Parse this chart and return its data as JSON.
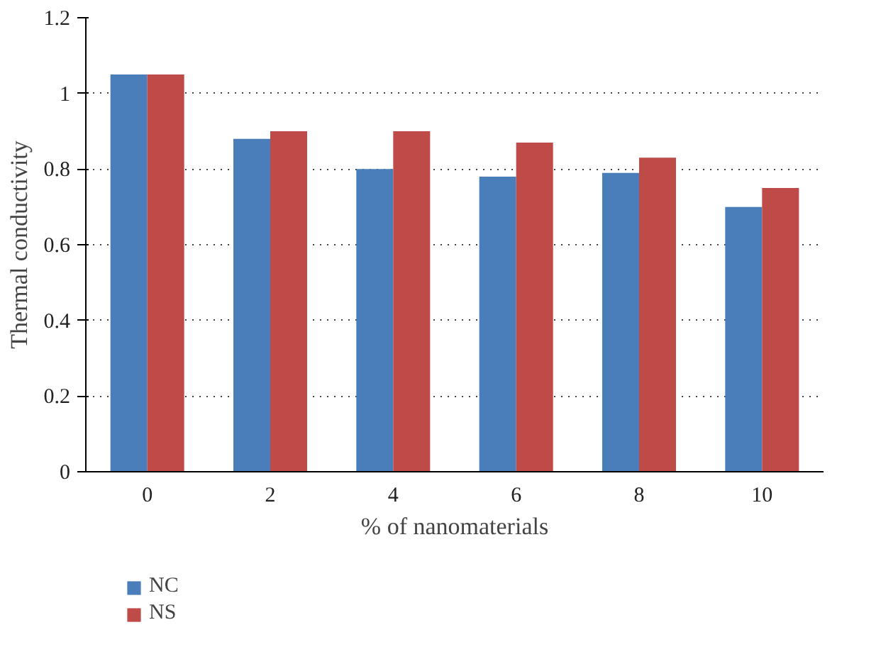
{
  "chart_data": {
    "type": "bar",
    "xlabel": "% of nanomaterials",
    "ylabel": "Thermal conductivity",
    "categories": [
      "0",
      "2",
      "4",
      "6",
      "8",
      "10"
    ],
    "series": [
      {
        "name": "NC",
        "color": "#4a7ebb",
        "values": [
          1.05,
          0.88,
          0.8,
          0.78,
          0.79,
          0.7
        ]
      },
      {
        "name": "NS",
        "color": "#be4b48",
        "values": [
          1.05,
          0.9,
          0.9,
          0.87,
          0.83,
          0.75
        ]
      }
    ],
    "ylim": [
      0,
      1.2
    ],
    "yticks": [
      0,
      0.2,
      0.4,
      0.6,
      0.8,
      {
        "value": 1,
        "label": "1"
      },
      1.2
    ],
    "grid": "y",
    "legend": "bottom left"
  }
}
